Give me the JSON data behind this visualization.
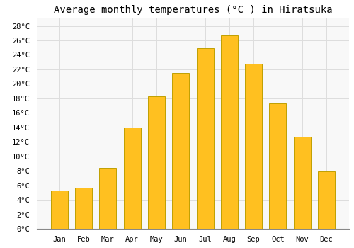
{
  "title": "Average monthly temperatures (°C ) in Hiratsuka",
  "months": [
    "Jan",
    "Feb",
    "Mar",
    "Apr",
    "May",
    "Jun",
    "Jul",
    "Aug",
    "Sep",
    "Oct",
    "Nov",
    "Dec"
  ],
  "temperatures": [
    5.3,
    5.7,
    8.4,
    14.0,
    18.3,
    21.5,
    24.9,
    26.7,
    22.8,
    17.3,
    12.7,
    7.9
  ],
  "bar_color": "#FFC020",
  "bar_edge_color": "#C0A000",
  "ylim": [
    0,
    29
  ],
  "yticks": [
    0,
    2,
    4,
    6,
    8,
    10,
    12,
    14,
    16,
    18,
    20,
    22,
    24,
    26,
    28
  ],
  "background_color": "#ffffff",
  "plot_bg_color": "#f8f8f8",
  "grid_color": "#dddddd",
  "title_fontsize": 10,
  "tick_fontsize": 7.5
}
